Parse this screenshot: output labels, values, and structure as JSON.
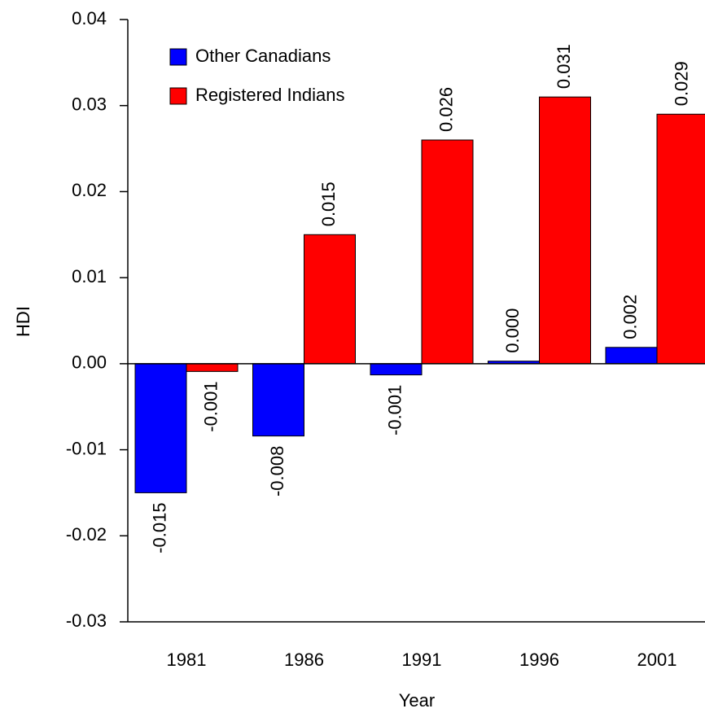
{
  "chart_data": {
    "type": "bar",
    "x_label": "Year",
    "y_label": "HDI",
    "categories": [
      "1981",
      "1986",
      "1991",
      "1996",
      "2001"
    ],
    "series": [
      {
        "name": "Other Canadians",
        "color": "#0000ff",
        "values": [
          -0.015,
          -0.0084,
          -0.0013,
          0.0003,
          0.0019
        ],
        "value_labels": [
          "-0.015",
          "-0.008",
          "-0.001",
          "0.000",
          "0.002"
        ]
      },
      {
        "name": "Registered Indians",
        "color": "#ff0000",
        "values": [
          -0.0009,
          0.015,
          0.026,
          0.031,
          0.029
        ],
        "value_labels": [
          "-0.001",
          "0.015",
          "0.026",
          "0.031",
          "0.029"
        ]
      }
    ],
    "ylim": [
      -0.03,
      0.04
    ],
    "yticks": [
      -0.03,
      -0.02,
      -0.01,
      {
        "value": 0,
        "label": "0.00"
      },
      0.01,
      0.02,
      0.03,
      0.04
    ],
    "legend": "upper left"
  }
}
